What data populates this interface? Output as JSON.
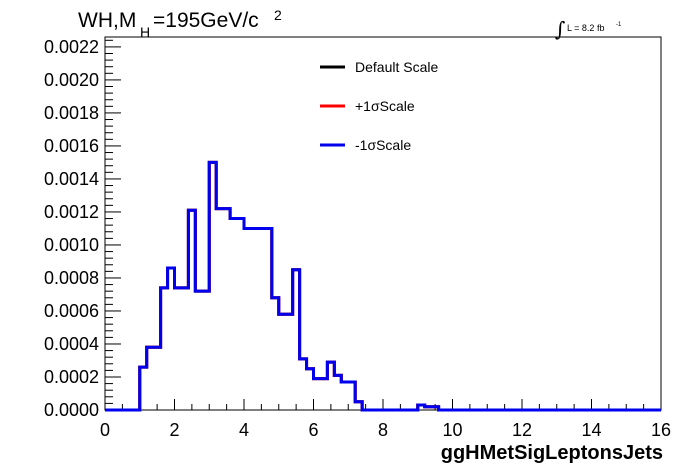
{
  "chart_data": {
    "type": "line",
    "title": {
      "prefix": "WH,M",
      "subscript": "H",
      "value": "=195GeV/c",
      "superscript": "2"
    },
    "luminosity": {
      "integral_sign": "∫",
      "text": "L = 8.2 fb",
      "superscript": "-1"
    },
    "xlabel": "ggHMetSigLeptonsJets",
    "ylabel": "",
    "xlim": [
      0,
      16
    ],
    "ylim": [
      0,
      0.00226
    ],
    "x_ticks": [
      0,
      2,
      4,
      6,
      8,
      10,
      12,
      14,
      16
    ],
    "x_tick_labels": [
      "0",
      "2",
      "4",
      "6",
      "8",
      "10",
      "12",
      "14",
      "16"
    ],
    "y_ticks": [
      0,
      0.0002,
      0.0004,
      0.0006,
      0.0008,
      0.001,
      0.0012,
      0.0014,
      0.0016,
      0.0018,
      0.002,
      0.0022
    ],
    "y_tick_labels": [
      "0.0000",
      "0.0002",
      "0.0004",
      "0.0006",
      "0.0008",
      "0.0010",
      "0.0012",
      "0.0014",
      "0.0016",
      "0.0018",
      "0.0020",
      "0.0022"
    ],
    "bin_edges": [
      0,
      0.4,
      0.8,
      1.0,
      1.2,
      1.6,
      1.8,
      2.0,
      2.4,
      2.6,
      3.0,
      3.2,
      3.6,
      4.0,
      4.2,
      4.6,
      4.8,
      5.0,
      5.4,
      5.6,
      5.8,
      6.0,
      6.4,
      6.6,
      6.8,
      7.2,
      7.4,
      8.0,
      9.0,
      9.2,
      9.6,
      10.0,
      16.0
    ],
    "series": [
      {
        "name": "Default Scale",
        "color": "#000000",
        "values": [
          0,
          0,
          0,
          0.00026,
          0.00038,
          0.00074,
          0.00086,
          0.00074,
          0.00121,
          0.00072,
          0.0015,
          0.00122,
          0.00116,
          0.0011,
          0.0011,
          0.0011,
          0.00068,
          0.00058,
          0.00085,
          0.00031,
          0.00025,
          0.00019,
          0.00029,
          0.00021,
          0.00017,
          5e-05,
          0,
          0,
          3e-05,
          2e-05,
          0,
          0
        ]
      },
      {
        "name": "+1σScale",
        "color": "#ff0000",
        "values": [
          0,
          0,
          0,
          0.00026,
          0.00038,
          0.00074,
          0.00086,
          0.00074,
          0.00121,
          0.00072,
          0.0015,
          0.00122,
          0.00116,
          0.0011,
          0.0011,
          0.0011,
          0.00068,
          0.00058,
          0.00085,
          0.00031,
          0.00025,
          0.00019,
          0.00029,
          0.00021,
          0.00017,
          5e-05,
          0,
          0,
          3e-05,
          2e-05,
          0,
          0
        ]
      },
      {
        "name": "-1σScale",
        "color": "#0000ee",
        "values": [
          0,
          0,
          0,
          0.00026,
          0.00038,
          0.00074,
          0.00086,
          0.00074,
          0.00121,
          0.00072,
          0.0015,
          0.00122,
          0.00116,
          0.0011,
          0.0011,
          0.0011,
          0.00068,
          0.00058,
          0.00085,
          0.00031,
          0.00025,
          0.00019,
          0.00029,
          0.00021,
          0.00017,
          5e-05,
          0,
          0,
          3e-05,
          2e-05,
          0,
          0
        ]
      }
    ],
    "legend": {
      "placement": "top-center",
      "entries": [
        "Default Scale",
        "+1σScale",
        "-1σScale"
      ]
    },
    "grid": false
  }
}
